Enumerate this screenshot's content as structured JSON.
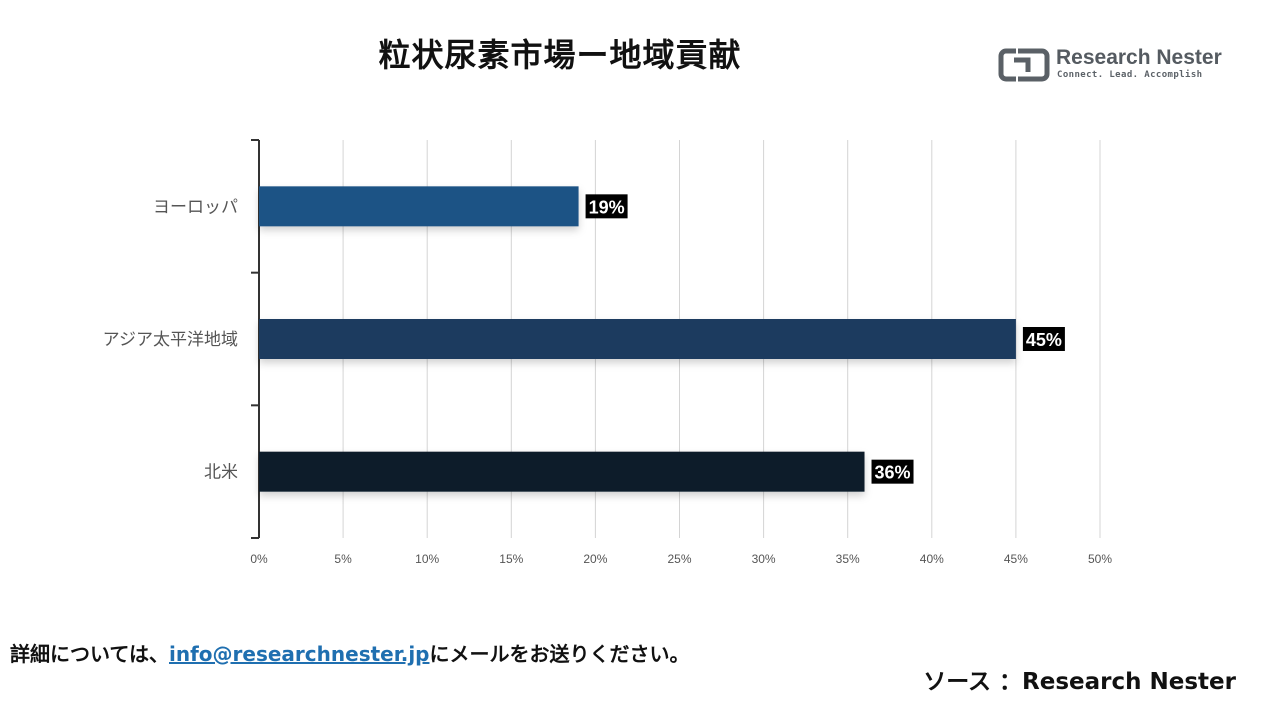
{
  "logo": {
    "name": "Research Nester",
    "tagline": "Connect. Lead. Accomplish"
  },
  "footer": {
    "contact_prefix": "詳細については、",
    "email": "info@researchnester.jp",
    "contact_suffix": "にメールをお送りください。",
    "source": "ソース ：Research Nester"
  },
  "chart_data": {
    "type": "bar",
    "orientation": "horizontal",
    "title": "粒状尿素市場ー地域貢献",
    "categories": [
      "ヨーロッパ",
      "アジア太平洋地域",
      "北米"
    ],
    "values": [
      19,
      45,
      36
    ],
    "data_labels": [
      "19%",
      "45%",
      "36%"
    ],
    "bar_colors": [
      "#1f5285",
      "#1b3a5e",
      "#0e1b2a"
    ],
    "xlim": [
      0,
      50
    ],
    "xticks": [
      0,
      5,
      10,
      15,
      20,
      25,
      30,
      35,
      40,
      45,
      50
    ],
    "tick_suffix": "%",
    "grid": true,
    "xlabel": "",
    "ylabel": ""
  }
}
